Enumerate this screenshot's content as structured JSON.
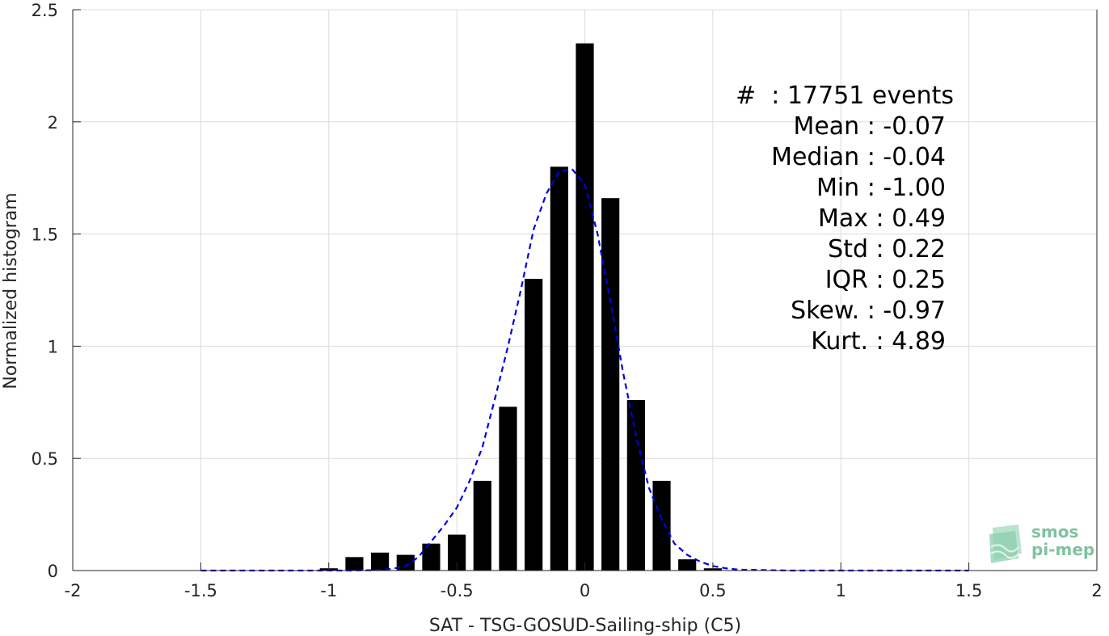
{
  "chart_data": {
    "type": "bar",
    "xlabel": "SAT - TSG-GOSUD-Sailing-ship (C5)",
    "ylabel": "Normalized histogram",
    "xlim": [
      -2,
      2
    ],
    "ylim": [
      0,
      2.5
    ],
    "xticks": [
      -2,
      -1.5,
      -1,
      -0.5,
      0,
      0.5,
      1,
      1.5,
      2
    ],
    "xtick_labels": [
      "-2",
      "-1.5",
      "-1",
      "-0.5",
      "0",
      "0.5",
      "1",
      "1.5",
      "2"
    ],
    "yticks": [
      0,
      0.5,
      1,
      1.5,
      2,
      2.5
    ],
    "ytick_labels": [
      "0",
      "0.5",
      "1",
      "1.5",
      "2",
      "2.5"
    ],
    "grid": true,
    "bin_width": 0.1,
    "bars": [
      {
        "x": -1.0,
        "y": 0.01
      },
      {
        "x": -0.9,
        "y": 0.06
      },
      {
        "x": -0.8,
        "y": 0.08
      },
      {
        "x": -0.7,
        "y": 0.07
      },
      {
        "x": -0.6,
        "y": 0.12
      },
      {
        "x": -0.5,
        "y": 0.16
      },
      {
        "x": -0.4,
        "y": 0.4
      },
      {
        "x": -0.3,
        "y": 0.73
      },
      {
        "x": -0.2,
        "y": 1.3
      },
      {
        "x": -0.1,
        "y": 1.8
      },
      {
        "x": 0.0,
        "y": 2.35
      },
      {
        "x": 0.1,
        "y": 1.66
      },
      {
        "x": 0.2,
        "y": 0.76
      },
      {
        "x": 0.3,
        "y": 0.4
      },
      {
        "x": 0.4,
        "y": 0.05
      },
      {
        "x": 0.5,
        "y": 0.01
      }
    ],
    "bar_color": "#000000",
    "fit_curve": {
      "style": "dashed",
      "color": "#0000e6",
      "x": [
        -1.5,
        -1.4,
        -1.3,
        -1.2,
        -1.1,
        -1.0,
        -0.9,
        -0.8,
        -0.75,
        -0.7,
        -0.65,
        -0.6,
        -0.55,
        -0.5,
        -0.45,
        -0.4,
        -0.35,
        -0.3,
        -0.25,
        -0.2,
        -0.15,
        -0.1,
        -0.05,
        0.0,
        0.05,
        0.1,
        0.15,
        0.2,
        0.25,
        0.3,
        0.35,
        0.4,
        0.45,
        0.5,
        0.55,
        0.6,
        0.7,
        0.8,
        0.9,
        1.0,
        1.1,
        1.2,
        1.3,
        1.4,
        1.5
      ],
      "y": [
        0,
        0,
        0,
        0,
        0,
        0,
        0,
        0.002,
        0.008,
        0.02,
        0.06,
        0.13,
        0.2,
        0.28,
        0.4,
        0.55,
        0.77,
        1.0,
        1.25,
        1.52,
        1.68,
        1.78,
        1.79,
        1.72,
        1.5,
        1.2,
        0.88,
        0.6,
        0.37,
        0.23,
        0.12,
        0.07,
        0.04,
        0.02,
        0.01,
        0.004,
        0.002,
        0,
        0,
        0,
        0,
        0,
        0,
        0,
        0
      ]
    }
  },
  "stats": {
    "line1": "#  : 17751 events",
    "line2": "Mean : -0.07",
    "line3": "Median : -0.04",
    "line4": "Min : -1.00",
    "line5": "Max : 0.49",
    "line6": "Std : 0.22",
    "line7": "IQR : 0.25",
    "line8": "Skew. : -0.97",
    "line9": "Kurt. : 4.89"
  },
  "logo": {
    "line1": "smos",
    "line2": "pi-mep",
    "color": "#7fc2a0"
  }
}
